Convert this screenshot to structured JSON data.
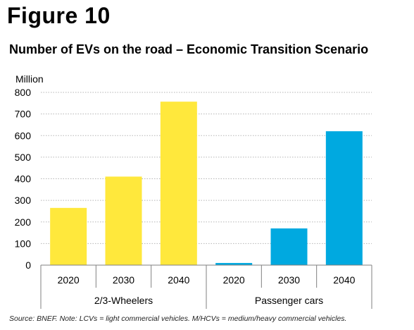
{
  "figure_label": "Figure 10",
  "source_note": "Source: BNEF. Note: LCVs = light commercial vehicles. M/HCVs = medium/heavy commercial vehicles.",
  "chart_data": {
    "type": "bar",
    "title": "Number of EVs on the road – Economic Transition Scenario",
    "ylabel": "Million",
    "xlabel": "",
    "ylim": [
      0,
      800
    ],
    "yticks": [
      0,
      100,
      200,
      300,
      400,
      500,
      600,
      700,
      800
    ],
    "grid": true,
    "groups": [
      {
        "name": "2/3-Wheelers",
        "color": "#FFE83C",
        "categories": [
          "2020",
          "2030",
          "2040"
        ],
        "values": [
          265,
          410,
          757
        ]
      },
      {
        "name": "Passenger cars",
        "color": "#00A9E0",
        "categories": [
          "2020",
          "2030",
          "2040"
        ],
        "values": [
          10,
          170,
          620
        ]
      }
    ]
  }
}
